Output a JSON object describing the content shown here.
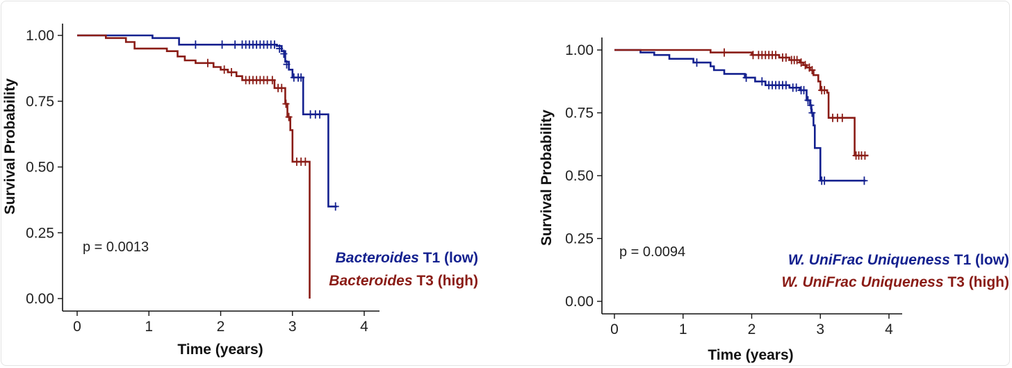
{
  "colors": {
    "low": "#14218f",
    "high": "#8a1c16",
    "axis": "#111111"
  },
  "chart_data": [
    {
      "type": "line",
      "subtype": "kaplan-meier",
      "xlabel": "Time (years)",
      "ylabel": "Survival Probability",
      "xlim": [
        0,
        4
      ],
      "ylim": [
        0,
        1
      ],
      "xticks": [
        "0",
        "1",
        "2",
        "3",
        "4"
      ],
      "yticks": [
        "0.00",
        "0.25",
        "0.50",
        "0.75",
        "1.00"
      ],
      "p_value_text": "p = 0.0013",
      "legend_position": "bottom-right",
      "series": [
        {
          "name": "Bacteroides T1 (low)",
          "legend_italic": "Bacteroides",
          "legend_rest": " T1 (low)",
          "color_key": "low",
          "steps": [
            [
              0,
              1.0
            ],
            [
              1.05,
              0.99
            ],
            [
              1.42,
              0.965
            ],
            [
              2.78,
              0.96
            ],
            [
              2.85,
              0.94
            ],
            [
              2.9,
              0.9
            ],
            [
              2.95,
              0.87
            ],
            [
              3.0,
              0.84
            ],
            [
              3.15,
              0.7
            ],
            [
              3.5,
              0.35
            ],
            [
              3.62,
              0.35
            ]
          ],
          "censors": [
            [
              1.65,
              0.965
            ],
            [
              2.02,
              0.965
            ],
            [
              2.2,
              0.965
            ],
            [
              2.3,
              0.965
            ],
            [
              2.35,
              0.965
            ],
            [
              2.4,
              0.965
            ],
            [
              2.45,
              0.965
            ],
            [
              2.5,
              0.965
            ],
            [
              2.55,
              0.965
            ],
            [
              2.6,
              0.965
            ],
            [
              2.65,
              0.965
            ],
            [
              2.7,
              0.965
            ],
            [
              2.75,
              0.965
            ],
            [
              2.82,
              0.95
            ],
            [
              2.88,
              0.93
            ],
            [
              2.92,
              0.89
            ],
            [
              3.02,
              0.84
            ],
            [
              3.08,
              0.84
            ],
            [
              3.12,
              0.84
            ],
            [
              3.25,
              0.7
            ],
            [
              3.32,
              0.7
            ],
            [
              3.38,
              0.7
            ],
            [
              3.6,
              0.35
            ]
          ]
        },
        {
          "name": "Bacteroides T3 (high)",
          "legend_italic": "Bacteroides",
          "legend_rest": " T3 (high)",
          "color_key": "high",
          "steps": [
            [
              0,
              1.0
            ],
            [
              0.4,
              0.99
            ],
            [
              0.68,
              0.975
            ],
            [
              0.8,
              0.95
            ],
            [
              1.25,
              0.94
            ],
            [
              1.4,
              0.92
            ],
            [
              1.5,
              0.905
            ],
            [
              1.65,
              0.895
            ],
            [
              1.9,
              0.88
            ],
            [
              2.0,
              0.87
            ],
            [
              2.1,
              0.86
            ],
            [
              2.22,
              0.845
            ],
            [
              2.3,
              0.83
            ],
            [
              2.75,
              0.8
            ],
            [
              2.9,
              0.74
            ],
            [
              2.93,
              0.69
            ],
            [
              2.97,
              0.64
            ],
            [
              3.0,
              0.52
            ],
            [
              3.22,
              0.52
            ],
            [
              3.24,
              0.0
            ]
          ],
          "censors": [
            [
              1.82,
              0.895
            ],
            [
              2.05,
              0.87
            ],
            [
              2.15,
              0.86
            ],
            [
              2.35,
              0.83
            ],
            [
              2.4,
              0.83
            ],
            [
              2.45,
              0.83
            ],
            [
              2.5,
              0.83
            ],
            [
              2.55,
              0.83
            ],
            [
              2.6,
              0.83
            ],
            [
              2.65,
              0.83
            ],
            [
              2.72,
              0.83
            ],
            [
              2.8,
              0.8
            ],
            [
              2.85,
              0.8
            ],
            [
              2.91,
              0.74
            ],
            [
              2.95,
              0.69
            ],
            [
              3.06,
              0.52
            ],
            [
              3.12,
              0.52
            ],
            [
              3.18,
              0.52
            ]
          ]
        }
      ]
    },
    {
      "type": "line",
      "subtype": "kaplan-meier",
      "xlabel": "Time (years)",
      "ylabel": "Survival Probability",
      "xlim": [
        0,
        4
      ],
      "ylim": [
        0,
        1
      ],
      "xticks": [
        "0",
        "1",
        "2",
        "3",
        "4"
      ],
      "yticks": [
        "0.00",
        "0.25",
        "0.50",
        "0.75",
        "1.00"
      ],
      "p_value_text": "p = 0.0094",
      "legend_position": "bottom-right",
      "series": [
        {
          "name": "W. UniFrac Uniqueness T1 (low)",
          "legend_italic": "W. UniFrac Uniqueness",
          "legend_rest": " T1 (low)",
          "color_key": "low",
          "steps": [
            [
              0,
              1.0
            ],
            [
              0.38,
              0.99
            ],
            [
              0.58,
              0.98
            ],
            [
              0.8,
              0.965
            ],
            [
              1.15,
              0.95
            ],
            [
              1.4,
              0.935
            ],
            [
              1.45,
              0.92
            ],
            [
              1.6,
              0.905
            ],
            [
              1.9,
              0.89
            ],
            [
              2.05,
              0.875
            ],
            [
              2.2,
              0.86
            ],
            [
              2.55,
              0.85
            ],
            [
              2.7,
              0.84
            ],
            [
              2.8,
              0.8
            ],
            [
              2.85,
              0.78
            ],
            [
              2.87,
              0.75
            ],
            [
              2.9,
              0.7
            ],
            [
              2.92,
              0.61
            ],
            [
              3.0,
              0.48
            ],
            [
              3.66,
              0.48
            ]
          ],
          "censors": [
            [
              1.2,
              0.95
            ],
            [
              1.92,
              0.89
            ],
            [
              2.15,
              0.875
            ],
            [
              2.25,
              0.86
            ],
            [
              2.3,
              0.86
            ],
            [
              2.35,
              0.86
            ],
            [
              2.4,
              0.86
            ],
            [
              2.45,
              0.86
            ],
            [
              2.5,
              0.86
            ],
            [
              2.6,
              0.85
            ],
            [
              2.65,
              0.85
            ],
            [
              2.72,
              0.84
            ],
            [
              2.76,
              0.84
            ],
            [
              2.82,
              0.8
            ],
            [
              2.86,
              0.78
            ],
            [
              2.88,
              0.75
            ],
            [
              3.02,
              0.48
            ],
            [
              3.06,
              0.48
            ],
            [
              3.64,
              0.48
            ]
          ]
        },
        {
          "name": "W. UniFrac Uniqueness T3 (high)",
          "legend_italic": "W. UniFrac Uniqueness",
          "legend_rest": " T3 (high)",
          "color_key": "high",
          "steps": [
            [
              0,
              1.0
            ],
            [
              1.4,
              0.99
            ],
            [
              2.0,
              0.98
            ],
            [
              2.4,
              0.97
            ],
            [
              2.55,
              0.96
            ],
            [
              2.7,
              0.95
            ],
            [
              2.75,
              0.94
            ],
            [
              2.8,
              0.93
            ],
            [
              2.85,
              0.92
            ],
            [
              2.9,
              0.9
            ],
            [
              2.97,
              0.875
            ],
            [
              3.0,
              0.84
            ],
            [
              3.1,
              0.83
            ],
            [
              3.12,
              0.73
            ],
            [
              3.5,
              0.58
            ],
            [
              3.7,
              0.58
            ]
          ],
          "censors": [
            [
              1.6,
              0.99
            ],
            [
              2.02,
              0.98
            ],
            [
              2.1,
              0.98
            ],
            [
              2.15,
              0.98
            ],
            [
              2.2,
              0.98
            ],
            [
              2.25,
              0.98
            ],
            [
              2.3,
              0.98
            ],
            [
              2.35,
              0.98
            ],
            [
              2.45,
              0.97
            ],
            [
              2.5,
              0.97
            ],
            [
              2.58,
              0.96
            ],
            [
              2.62,
              0.96
            ],
            [
              2.66,
              0.96
            ],
            [
              2.72,
              0.95
            ],
            [
              2.78,
              0.94
            ],
            [
              2.84,
              0.93
            ],
            [
              2.88,
              0.92
            ],
            [
              3.02,
              0.84
            ],
            [
              3.06,
              0.84
            ],
            [
              3.18,
              0.73
            ],
            [
              3.25,
              0.73
            ],
            [
              3.32,
              0.73
            ],
            [
              3.52,
              0.58
            ],
            [
              3.56,
              0.58
            ],
            [
              3.6,
              0.58
            ],
            [
              3.65,
              0.58
            ]
          ]
        }
      ]
    }
  ]
}
